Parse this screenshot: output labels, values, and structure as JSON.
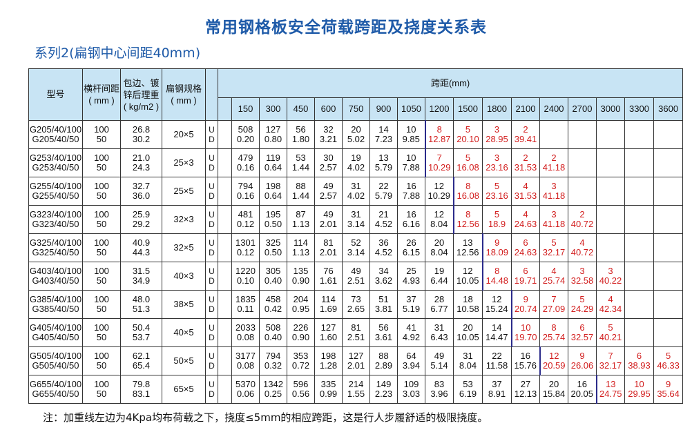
{
  "title": "常用钢格板安全荷载跨距及挠度关系表",
  "subtitle": "系列2(扁钢中心间距40mm)",
  "headers": {
    "model": "型号",
    "bar_pitch": [
      "横杆间距",
      "( mm )"
    ],
    "weight": [
      "包边、镀",
      "锌后理重",
      "( kg/m2 )"
    ],
    "bar_spec": [
      "扁钢规格",
      "( mm )"
    ],
    "span": "跨距(mm)",
    "spans": [
      "150",
      "300",
      "450",
      "600",
      "750",
      "900",
      "1050",
      "1200",
      "1500",
      "1800",
      "2100",
      "2400",
      "2700",
      "3000",
      "3300",
      "3600"
    ]
  },
  "rows": [
    {
      "models": [
        "G205/40/100",
        "G205/40/50"
      ],
      "pitch": [
        "100",
        "50"
      ],
      "weight": [
        "26.8",
        "30.2"
      ],
      "spec": "20×5",
      "U": [
        "508",
        "127",
        "56",
        "32",
        "20",
        "14",
        "10",
        "8",
        "5",
        "3",
        "2",
        "",
        "",
        "",
        "",
        ""
      ],
      "D": [
        "0.20",
        "0.80",
        "1.80",
        "3.21",
        "5.02",
        "7.23",
        "9.85",
        "12.87",
        "20.10",
        "28.95",
        "39.41",
        "",
        "",
        "",
        "",
        ""
      ],
      "red_from": 7
    },
    {
      "models": [
        "G253/40/100",
        "G253/40/50"
      ],
      "pitch": [
        "100",
        "50"
      ],
      "weight": [
        "21.0",
        "24.3"
      ],
      "spec": "25×3",
      "U": [
        "479",
        "119",
        "53",
        "30",
        "19",
        "13",
        "10",
        "7",
        "5",
        "3",
        "2",
        "2",
        "",
        "",
        "",
        ""
      ],
      "D": [
        "0.16",
        "0.64",
        "1.44",
        "2.57",
        "4.02",
        "5.79",
        "7.88",
        "10.29",
        "16.08",
        "23.16",
        "31.53",
        "41.18",
        "",
        "",
        "",
        ""
      ],
      "red_from": 7
    },
    {
      "models": [
        "G255/40/100",
        "G255/40/50"
      ],
      "pitch": [
        "100",
        "50"
      ],
      "weight": [
        "32.7",
        "36.0"
      ],
      "spec": "25×5",
      "U": [
        "794",
        "198",
        "88",
        "49",
        "31",
        "22",
        "16",
        "12",
        "8",
        "5",
        "4",
        "3",
        "",
        "",
        "",
        ""
      ],
      "D": [
        "0.16",
        "0.64",
        "1.44",
        "2.57",
        "4.02",
        "5.79",
        "7.88",
        "10.29",
        "16.08",
        "23.16",
        "31.53",
        "41.18",
        "",
        "",
        "",
        ""
      ],
      "red_from": 8
    },
    {
      "models": [
        "G323/40/100",
        "G323/40/50"
      ],
      "pitch": [
        "100",
        "50"
      ],
      "weight": [
        "25.9",
        "29.2"
      ],
      "spec": "32×3",
      "U": [
        "481",
        "195",
        "87",
        "49",
        "31",
        "21",
        "16",
        "12",
        "8",
        "5",
        "4",
        "3",
        "2",
        "",
        "",
        ""
      ],
      "D": [
        "0.12",
        "0.50",
        "1.13",
        "2.01",
        "3.14",
        "4.52",
        "6.16",
        "8.04",
        "12.56",
        "18.9",
        "24.63",
        "41.18",
        "40.72",
        "",
        "",
        ""
      ],
      "red_from": 8
    },
    {
      "models": [
        "G325/40/100",
        "G325/40/50"
      ],
      "pitch": [
        "100",
        "50"
      ],
      "weight": [
        "40.9",
        "44.3"
      ],
      "spec": "32×5",
      "U": [
        "1301",
        "325",
        "114",
        "81",
        "52",
        "36",
        "26",
        "20",
        "13",
        "9",
        "6",
        "5",
        "4",
        "",
        "",
        ""
      ],
      "D": [
        "0.12",
        "0.50",
        "1.13",
        "2.01",
        "3.14",
        "4.52",
        "6.15",
        "8.04",
        "12.56",
        "18.09",
        "24.63",
        "32.17",
        "40.72",
        "",
        "",
        ""
      ],
      "red_from": 9
    },
    {
      "models": [
        "G403/40/100",
        "G403/40/50"
      ],
      "pitch": [
        "100",
        "50"
      ],
      "weight": [
        "31.5",
        "34.9"
      ],
      "spec": "40×3",
      "U": [
        "1220",
        "305",
        "135",
        "76",
        "49",
        "34",
        "25",
        "19",
        "12",
        "8",
        "6",
        "4",
        "3",
        "3",
        "",
        ""
      ],
      "D": [
        "0.10",
        "0.40",
        "0.90",
        "1.61",
        "2.51",
        "3.62",
        "4.93",
        "6.44",
        "10.05",
        "14.48",
        "19.71",
        "25.74",
        "32.58",
        "40.22",
        "",
        ""
      ],
      "red_from": 9
    },
    {
      "models": [
        "G385/40/100",
        "G385/40/50"
      ],
      "pitch": [
        "100",
        "50"
      ],
      "weight": [
        "48.0",
        "51.3"
      ],
      "spec": "38×5",
      "U": [
        "1835",
        "458",
        "204",
        "114",
        "73",
        "51",
        "37",
        "28",
        "18",
        "12",
        "9",
        "7",
        "5",
        "4",
        "",
        ""
      ],
      "D": [
        "0.11",
        "0.42",
        "0.95",
        "1.69",
        "2.65",
        "3.81",
        "5.19",
        "6.77",
        "10.58",
        "15.24",
        "20.74",
        "27.09",
        "24.29",
        "42.34",
        "",
        ""
      ],
      "red_from": 10
    },
    {
      "models": [
        "G405/40/100",
        "G405/40/50"
      ],
      "pitch": [
        "100",
        "50"
      ],
      "weight": [
        "50.4",
        "53.7"
      ],
      "spec": "40×5",
      "U": [
        "2033",
        "508",
        "226",
        "127",
        "81",
        "56",
        "41",
        "31",
        "20",
        "14",
        "10",
        "8",
        "6",
        "5",
        "",
        ""
      ],
      "D": [
        "0.08",
        "0.40",
        "0.90",
        "1.60",
        "2.51",
        "3.61",
        "4.92",
        "6.43",
        "10.05",
        "14.47",
        "19.70",
        "25.74",
        "32.57",
        "40.21",
        "",
        ""
      ],
      "red_from": 10
    },
    {
      "models": [
        "G505/40/100",
        "G505/40/50"
      ],
      "pitch": [
        "100",
        "50"
      ],
      "weight": [
        "62.1",
        "65.4"
      ],
      "spec": "50×5",
      "U": [
        "3177",
        "794",
        "353",
        "198",
        "127",
        "88",
        "64",
        "49",
        "31",
        "22",
        "16",
        "12",
        "9",
        "7",
        "6",
        "5"
      ],
      "D": [
        "0.08",
        "0.32",
        "0.72",
        "1.28",
        "2.01",
        "2.89",
        "3.94",
        "5.14",
        "8.04",
        "11.58",
        "15.76",
        "20.59",
        "26.06",
        "32.17",
        "38.93",
        "46.33"
      ],
      "red_from": 11
    },
    {
      "models": [
        "G655/40/100",
        "G655/40/50"
      ],
      "pitch": [
        "100",
        "50"
      ],
      "weight": [
        "79.8",
        "83.1"
      ],
      "spec": "65×5",
      "U": [
        "5370",
        "1342",
        "596",
        "335",
        "214",
        "149",
        "109",
        "83",
        "53",
        "37",
        "27",
        "20",
        "16",
        "13",
        "10",
        "9"
      ],
      "D": [
        "0.06",
        "0.25",
        "0.56",
        "0.99",
        "1.55",
        "2.23",
        "3.03",
        "3.96",
        "6.19",
        "8.91",
        "12.13",
        "15.84",
        "20.05",
        "24.75",
        "29.95",
        "35.64"
      ],
      "red_from": 13
    }
  ],
  "note": "注：加重线左边为4Kpa均布荷载之下，挠度≤5mm的相应跨距，这是行人步履舒适的极限挠度。",
  "colors": {
    "title": "#1e5aa8",
    "header_bg": "#c8e4f4",
    "red": "#d21d1d",
    "boundary": "#2a2a8a"
  }
}
